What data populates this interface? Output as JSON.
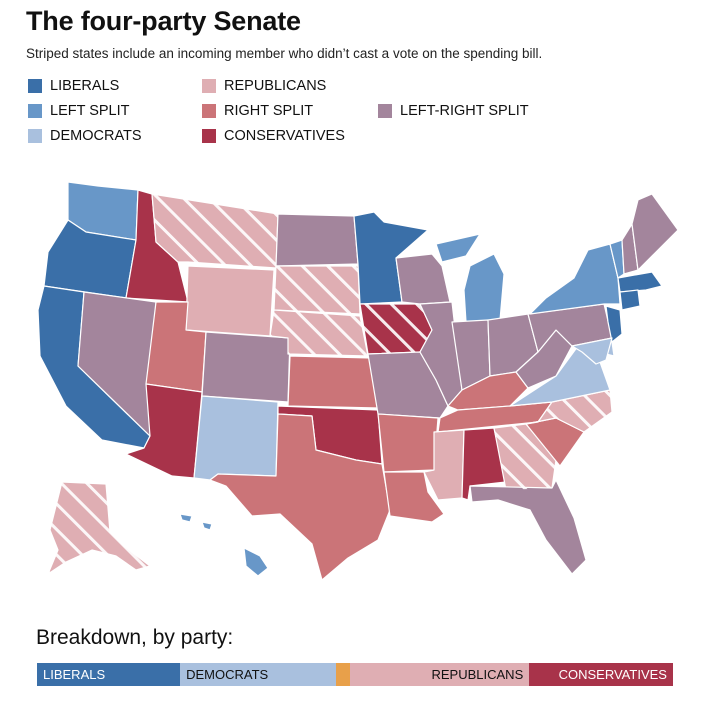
{
  "header": {
    "title": "The four-party Senate",
    "subtitle": "Striped states include an incoming member who didn’t cast a vote on the spending bill."
  },
  "colors": {
    "liberals": "#3a6fa8",
    "left_split": "#6897c8",
    "democrats": "#a9c0de",
    "republicans": "#dfaeb3",
    "right_split": "#cb7478",
    "conservatives": "#a8334a",
    "left_right_split": "#a3859c",
    "independents": "#e8a04a"
  },
  "legend": {
    "items": [
      {
        "key": "liberals",
        "label": "LIBERALS"
      },
      {
        "key": "left_split",
        "label": "LEFT SPLIT"
      },
      {
        "key": "democrats",
        "label": "DEMOCRATS"
      },
      {
        "key": "republicans",
        "label": "REPUBLICANS"
      },
      {
        "key": "right_split",
        "label": "RIGHT SPLIT"
      },
      {
        "key": "conservatives",
        "label": "CONSERVATIVES"
      },
      {
        "key": "left_right_split",
        "label": "LEFT-RIGHT SPLIT"
      }
    ]
  },
  "states": [
    {
      "id": "WA",
      "cat": "left_split",
      "striped": false
    },
    {
      "id": "OR",
      "cat": "liberals",
      "striped": false
    },
    {
      "id": "CA",
      "cat": "liberals",
      "striped": false
    },
    {
      "id": "ID",
      "cat": "conservatives",
      "striped": false
    },
    {
      "id": "NV",
      "cat": "left_right_split",
      "striped": false
    },
    {
      "id": "MT",
      "cat": "republicans",
      "striped": true
    },
    {
      "id": "WY",
      "cat": "republicans",
      "striped": false
    },
    {
      "id": "UT",
      "cat": "right_split",
      "striped": false
    },
    {
      "id": "AZ",
      "cat": "conservatives",
      "striped": false
    },
    {
      "id": "CO",
      "cat": "left_right_split",
      "striped": false
    },
    {
      "id": "NM",
      "cat": "democrats",
      "striped": false
    },
    {
      "id": "ND",
      "cat": "left_right_split",
      "striped": false
    },
    {
      "id": "SD",
      "cat": "republicans",
      "striped": true
    },
    {
      "id": "NE",
      "cat": "republicans",
      "striped": true
    },
    {
      "id": "KS",
      "cat": "right_split",
      "striped": false
    },
    {
      "id": "OK",
      "cat": "conservatives",
      "striped": false
    },
    {
      "id": "TX",
      "cat": "right_split",
      "striped": false
    },
    {
      "id": "MN",
      "cat": "liberals",
      "striped": false
    },
    {
      "id": "IA",
      "cat": "conservatives",
      "striped": true
    },
    {
      "id": "MO",
      "cat": "left_right_split",
      "striped": false
    },
    {
      "id": "AR",
      "cat": "right_split",
      "striped": false
    },
    {
      "id": "LA",
      "cat": "right_split",
      "striped": false
    },
    {
      "id": "WI",
      "cat": "left_right_split",
      "striped": false
    },
    {
      "id": "IL",
      "cat": "left_right_split",
      "striped": false
    },
    {
      "id": "MI",
      "cat": "left_split",
      "striped": false
    },
    {
      "id": "IN",
      "cat": "left_right_split",
      "striped": false
    },
    {
      "id": "OH",
      "cat": "left_right_split",
      "striped": false
    },
    {
      "id": "KY",
      "cat": "right_split",
      "striped": false
    },
    {
      "id": "TN",
      "cat": "right_split",
      "striped": false
    },
    {
      "id": "MS",
      "cat": "republicans",
      "striped": false
    },
    {
      "id": "AL",
      "cat": "conservatives",
      "striped": false
    },
    {
      "id": "GA",
      "cat": "republicans",
      "striped": true
    },
    {
      "id": "FL",
      "cat": "left_right_split",
      "striped": false
    },
    {
      "id": "SC",
      "cat": "right_split",
      "striped": false
    },
    {
      "id": "NC",
      "cat": "republicans",
      "striped": true
    },
    {
      "id": "VA",
      "cat": "democrats",
      "striped": false
    },
    {
      "id": "WV",
      "cat": "left_right_split",
      "striped": false
    },
    {
      "id": "PA",
      "cat": "left_right_split",
      "striped": false
    },
    {
      "id": "NY",
      "cat": "left_split",
      "striped": false
    },
    {
      "id": "NJ",
      "cat": "liberals",
      "striped": false
    },
    {
      "id": "DE",
      "cat": "democrats",
      "striped": false
    },
    {
      "id": "MD",
      "cat": "democrats",
      "striped": false
    },
    {
      "id": "ME",
      "cat": "left_right_split",
      "striped": false
    },
    {
      "id": "NH",
      "cat": "left_right_split",
      "striped": false
    },
    {
      "id": "VT",
      "cat": "left_split",
      "striped": false
    },
    {
      "id": "MA",
      "cat": "liberals",
      "striped": false
    },
    {
      "id": "CT",
      "cat": "liberals",
      "striped": false
    },
    {
      "id": "AK",
      "cat": "republicans",
      "striped": true
    },
    {
      "id": "HI",
      "cat": "left_split",
      "striped": false
    }
  ],
  "breakdown": {
    "title": "Breakdown, by party:",
    "segments": [
      {
        "key": "liberals",
        "label": "LIBERALS",
        "value": 22.5,
        "text_color": "#ffffff",
        "align": "left"
      },
      {
        "key": "democrats",
        "label": "DEMOCRATS",
        "value": 24.5,
        "text_color": "#111111",
        "align": "left"
      },
      {
        "key": "independents",
        "label": "",
        "value": 2.2,
        "text_color": "#111111",
        "align": "left"
      },
      {
        "key": "republicans",
        "label": "REPUBLICANS",
        "value": 28.2,
        "text_color": "#111111",
        "align": "right"
      },
      {
        "key": "conservatives",
        "label": "CONSERVATIVES",
        "value": 22.6,
        "text_color": "#ffffff",
        "align": "right"
      }
    ]
  }
}
